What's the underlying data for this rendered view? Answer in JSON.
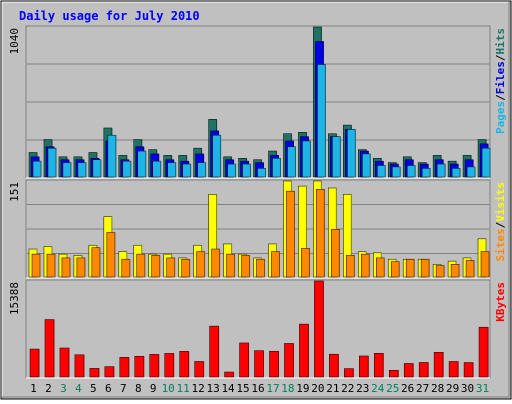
{
  "chart_data": {
    "type": "bar",
    "title": "Daily usage for July 2010",
    "days": [
      "1",
      "2",
      "3",
      "4",
      "5",
      "6",
      "7",
      "8",
      "9",
      "10",
      "11",
      "12",
      "13",
      "14",
      "15",
      "16",
      "17",
      "18",
      "19",
      "20",
      "21",
      "22",
      "23",
      "24",
      "25",
      "26",
      "27",
      "28",
      "29",
      "30",
      "31"
    ],
    "weekend_days": [
      "3",
      "4",
      "10",
      "11",
      "17",
      "18",
      "24",
      "25",
      "31"
    ],
    "panels": [
      {
        "id": "hits",
        "ymax_label": "1040",
        "ymax": 1040,
        "grid": true,
        "legend": [
          "Pages",
          "Files",
          "Hits"
        ],
        "series": [
          {
            "name": "Hits",
            "color": "#1E7364",
            "values": [
              170,
              260,
              140,
              140,
              170,
              340,
              150,
              260,
              190,
              150,
              150,
              200,
              400,
              140,
              130,
              120,
              180,
              300,
              310,
              1040,
              300,
              360,
              190,
              130,
              100,
              140,
              100,
              150,
              110,
              150,
              260
            ]
          },
          {
            "name": "Files",
            "color": "#0000E6",
            "values": [
              140,
              210,
              120,
              120,
              130,
              250,
              120,
              210,
              160,
              120,
              110,
              160,
              320,
              120,
              110,
              100,
              150,
              250,
              280,
              940,
              280,
              330,
              180,
              110,
              90,
              120,
              90,
              120,
              90,
              120,
              230
            ]
          },
          {
            "name": "Pages",
            "color": "#1EB4E6",
            "values": [
              110,
              200,
              100,
              100,
              120,
              290,
              110,
              180,
              110,
              100,
              90,
              100,
              290,
              90,
              90,
              60,
              130,
              210,
              250,
              780,
              280,
              330,
              160,
              80,
              70,
              80,
              60,
              90,
              60,
              70,
              200
            ]
          }
        ]
      },
      {
        "id": "visits",
        "ymax_label": "151",
        "ymax": 151,
        "grid": true,
        "legend": [
          "Sites",
          "Visits"
        ],
        "series": [
          {
            "name": "Visits",
            "color": "#FFFF00",
            "values": [
              44,
              48,
              36,
              34,
              50,
              95,
              40,
              50,
              36,
              36,
              30,
              50,
              130,
              52,
              36,
              30,
              52,
              151,
              143,
              151,
              140,
              130,
              40,
              38,
              28,
              28,
              28,
              20,
              25,
              30,
              60
            ]
          },
          {
            "name": "Sites",
            "color": "#FF8800",
            "values": [
              36,
              36,
              30,
              30,
              46,
              70,
              28,
              36,
              34,
              30,
              28,
              40,
              44,
              36,
              34,
              28,
              40,
              135,
              45,
              138,
              75,
              34,
              36,
              30,
              24,
              28,
              28,
              18,
              20,
              26,
              40
            ]
          }
        ]
      },
      {
        "id": "kbytes",
        "ymax_label": "15388",
        "ymax": 15388,
        "grid": false,
        "legend": [
          "KBytes"
        ],
        "series": [
          {
            "name": "KBytes",
            "color": "#FF0000",
            "values": [
              4480,
              9210,
              4650,
              3560,
              1380,
              1670,
              3150,
              3330,
              3630,
              3780,
              4110,
              2490,
              8160,
              800,
              5460,
              4230,
              4130,
              5380,
              8480,
              15388,
              3660,
              1350,
              3370,
              3800,
              1080,
              2170,
              2330,
              3970,
              2490,
              2320,
              7990
            ]
          }
        ]
      }
    ]
  }
}
